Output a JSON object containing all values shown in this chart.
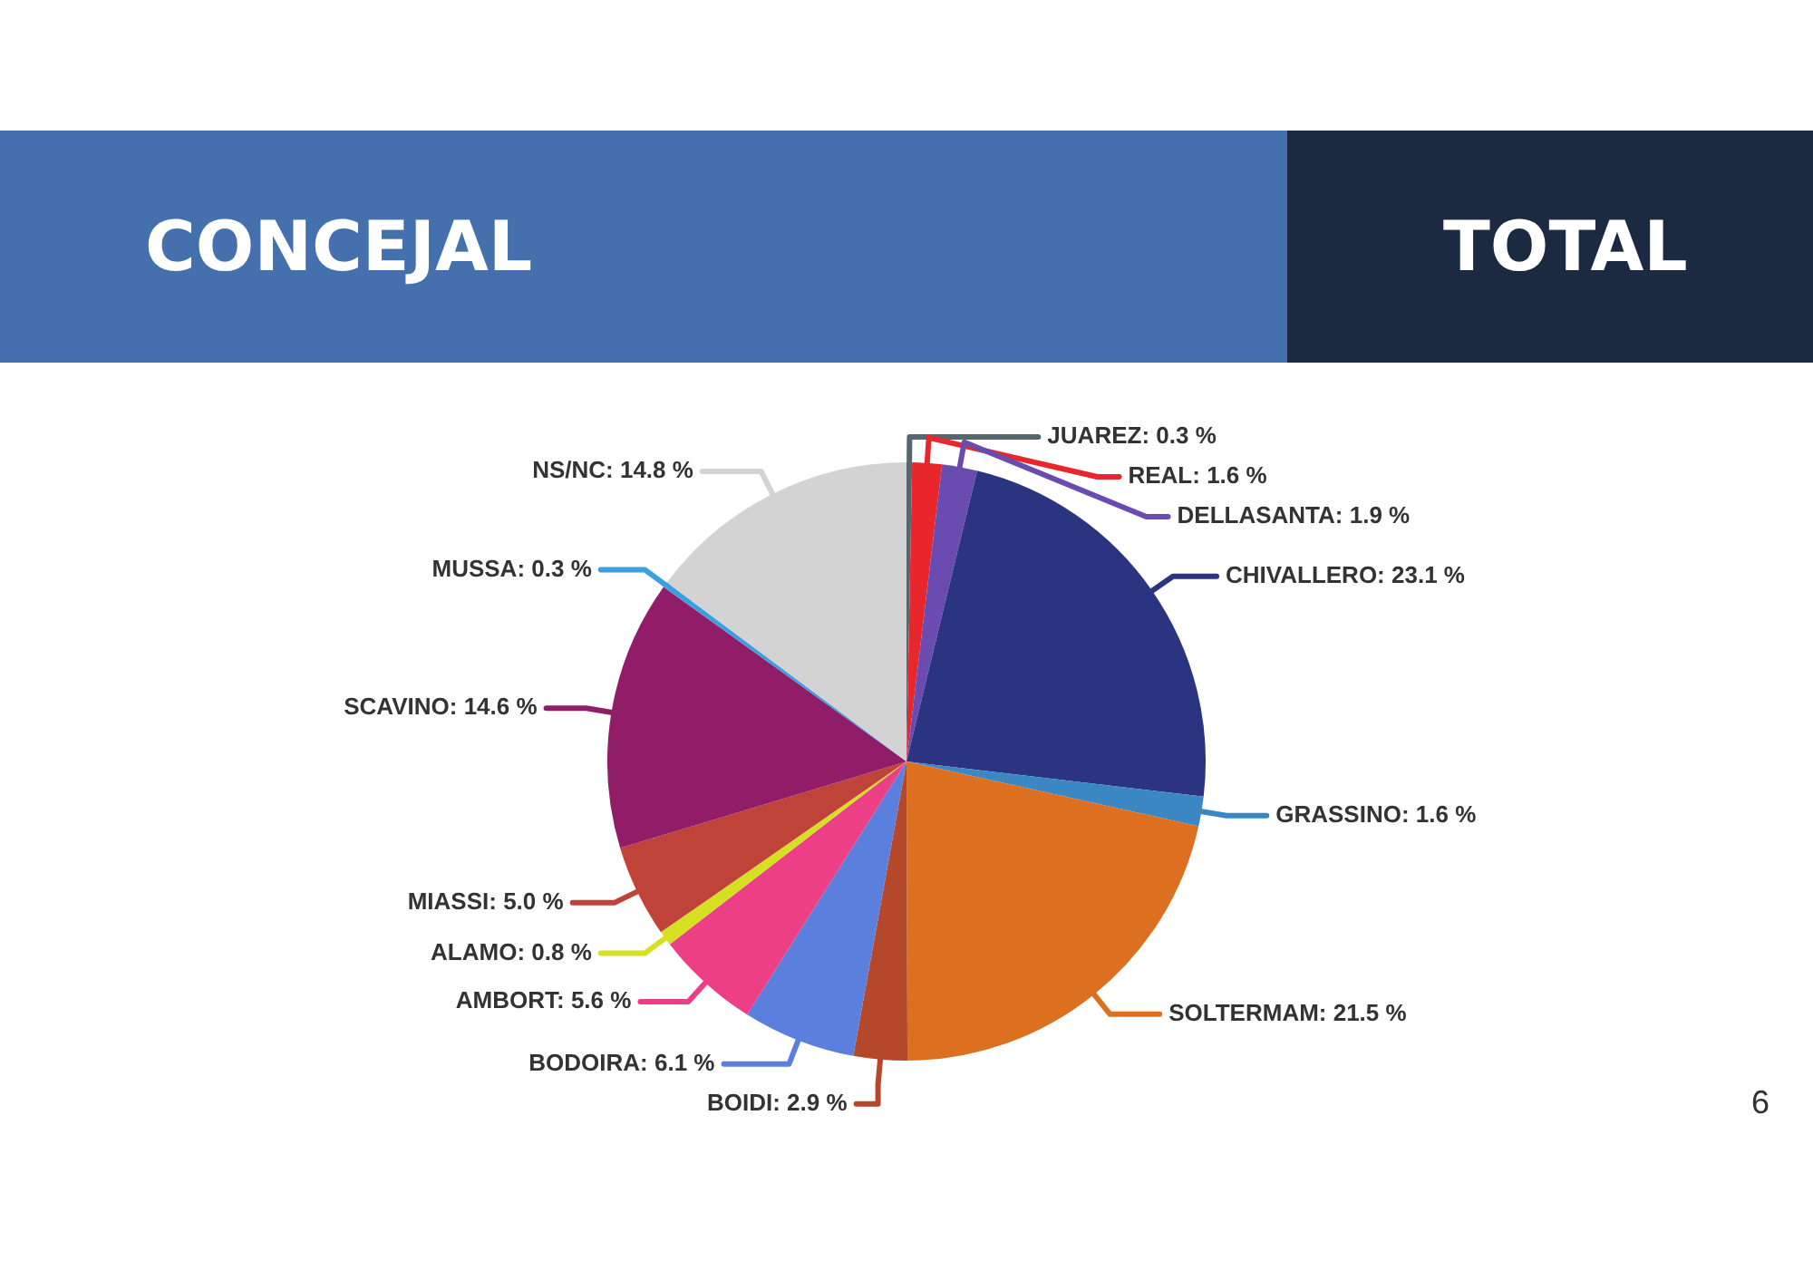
{
  "chart_data": {
    "type": "pie",
    "title": "CONCEJAL",
    "subtitle": "TOTAL",
    "categories": [
      "JUAREZ",
      "REAL",
      "DELLASANTA",
      "CHIVALLERO",
      "GRASSINO",
      "SOLTERMAM",
      "BOIDI",
      "BODOIRA",
      "AMBORT",
      "ALAMO",
      "MIASSI",
      "SCAVINO",
      "MUSSA",
      "NS/NC"
    ],
    "values": [
      0.3,
      1.6,
      1.9,
      23.1,
      1.6,
      21.5,
      2.9,
      6.1,
      5.6,
      0.8,
      5.0,
      14.6,
      0.3,
      14.8
    ],
    "value_labels": [
      "0.3 %",
      "1.6 %",
      "1.9 %",
      "23.1 %",
      "1.6 %",
      "21.5 %",
      "2.9 %",
      "6.1 %",
      "5.6 %",
      "0.8 %",
      "5.0 %",
      "14.6 %",
      "0.3 %",
      "14.8 %"
    ],
    "colors": [
      "#56666e",
      "#e8262b",
      "#6a4cb0",
      "#2b3480",
      "#3a87c4",
      "#dd7020",
      "#b5472a",
      "#5a7fdc",
      "#ec3f86",
      "#d4e021",
      "#c0433a",
      "#911d68",
      "#3aa0e0",
      "#d3d3d3"
    ],
    "legend": false,
    "annotations": [
      "6"
    ]
  }
}
